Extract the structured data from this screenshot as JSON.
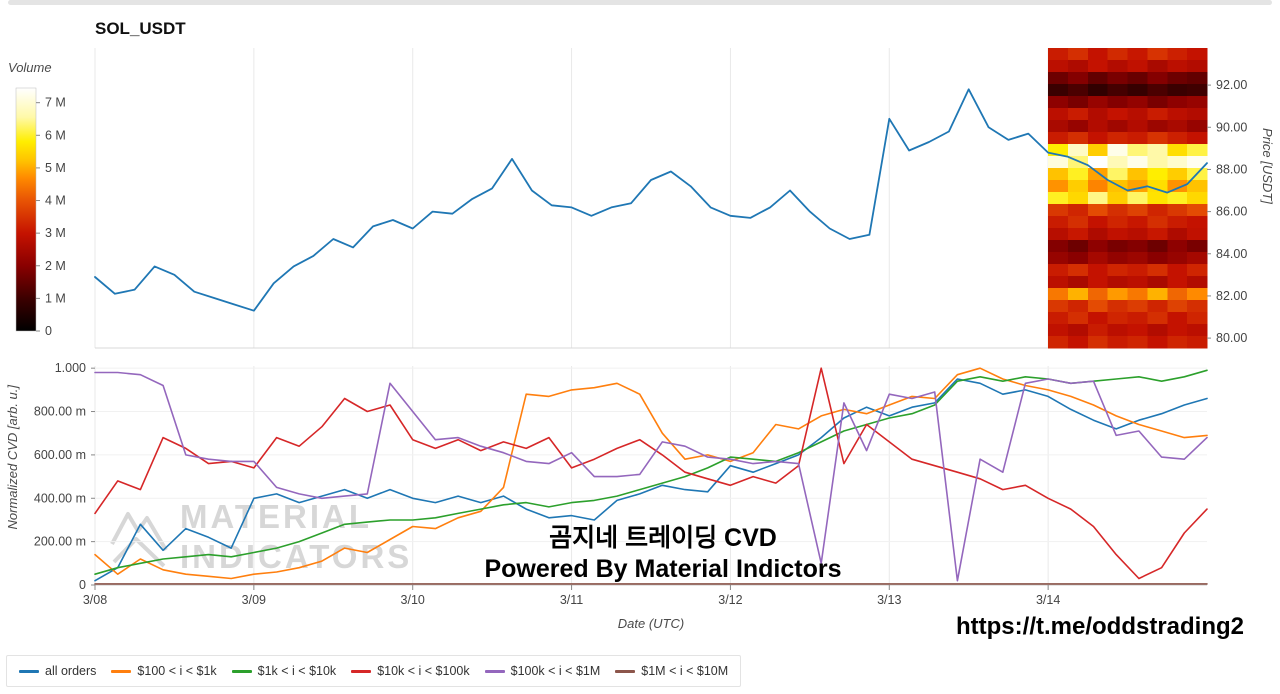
{
  "page": {
    "title": "SOL_USDT"
  },
  "colorbar": {
    "label": "Volume",
    "tick_values": [
      7,
      6,
      5,
      4,
      3,
      2,
      1,
      0
    ],
    "tick_labels": [
      "7 M",
      "6 M",
      "5 M",
      "4 M",
      "3 M",
      "2 M",
      "1 M",
      "0"
    ]
  },
  "axes": {
    "price_axis": {
      "label": "Price [USDT]",
      "tick_values": [
        92,
        90,
        88,
        86,
        84,
        82,
        80
      ],
      "tick_labels": [
        "92.00",
        "90.00",
        "88.00",
        "86.00",
        "84.00",
        "82.00",
        "80.00"
      ]
    },
    "cvd_axis": {
      "label": "Normalized CVD [arb. u.]",
      "tick_values": [
        1,
        0.8,
        0.6,
        0.4,
        0.2,
        0
      ],
      "tick_labels": [
        "1.000",
        "800.00 m",
        "600.00 m",
        "400.00 m",
        "200.00 m",
        "0"
      ]
    },
    "date_axis": {
      "label": "Date (UTC)",
      "tick_values": [
        0,
        1,
        2,
        3,
        4,
        5,
        6
      ],
      "tick_labels": [
        "3/08",
        "3/09",
        "3/10",
        "3/11",
        "3/12",
        "3/13",
        "3/14"
      ]
    }
  },
  "watermark": {
    "line1": "MATERIAL",
    "line2": "INDICATORS"
  },
  "overlay": {
    "caption_line1": "곰지네 트레이딩 CVD",
    "caption_line2": "Powered By Material Indictors",
    "link": "https://t.me/oddstrading2"
  },
  "legend": {
    "items": [
      {
        "label": "all orders",
        "color": "#1f77b4"
      },
      {
        "label": "$100 < i < $1k",
        "color": "#ff7f0e"
      },
      {
        "label": "$1k < i < $10k",
        "color": "#2ca02c"
      },
      {
        "label": "$10k < i < $100k",
        "color": "#d62728"
      },
      {
        "label": "$100k < i < $1M",
        "color": "#9467bd"
      },
      {
        "label": "$1M < i < $10M",
        "color": "#8c564b"
      }
    ]
  },
  "chart_data": [
    {
      "type": "line",
      "title": "SOL_USDT price",
      "xlabel": "Date (UTC)",
      "ylabel": "Price [USDT]",
      "x_range": [
        0,
        7
      ],
      "ylim": [
        79.53,
        93.76
      ],
      "series": [
        {
          "name": "price",
          "color": "#1f77b4",
          "values": [
            82.9,
            82.1,
            82.3,
            83.4,
            83.0,
            82.2,
            81.9,
            81.6,
            81.3,
            82.6,
            83.4,
            83.9,
            84.7,
            84.3,
            85.3,
            85.6,
            85.2,
            86.0,
            85.9,
            86.6,
            87.1,
            88.5,
            87.0,
            86.3,
            86.2,
            85.8,
            86.2,
            86.4,
            87.5,
            87.9,
            87.2,
            86.2,
            85.8,
            85.7,
            86.2,
            87.0,
            86.0,
            85.2,
            84.7,
            84.9,
            90.4,
            88.9,
            89.3,
            89.8,
            91.8,
            90.0,
            89.4,
            89.7,
            88.8,
            88.6,
            88.2,
            87.5,
            87.0,
            87.2,
            86.9,
            87.3,
            88.3
          ]
        }
      ]
    },
    {
      "type": "heatmap",
      "title": "Volume heatmap",
      "x_range": [
        6,
        7
      ],
      "vmin": 0,
      "vmax": 100,
      "colormap_stops": [
        [
          0,
          "#000000"
        ],
        [
          0.13,
          "#3a0000"
        ],
        [
          0.27,
          "#8a0000"
        ],
        [
          0.4,
          "#c41200"
        ],
        [
          0.54,
          "#e95504"
        ],
        [
          0.63,
          "#ff8a00"
        ],
        [
          0.7,
          "#ffc200"
        ],
        [
          0.78,
          "#ffee00"
        ],
        [
          0.88,
          "#fff9a8"
        ],
        [
          1,
          "#ffffff"
        ]
      ],
      "values": [
        [
          42,
          46,
          40,
          45,
          41,
          47,
          43,
          40
        ],
        [
          38,
          35,
          40,
          36,
          39,
          34,
          38,
          36
        ],
        [
          22,
          26,
          20,
          24,
          21,
          26,
          22,
          20
        ],
        [
          13,
          16,
          11,
          15,
          12,
          16,
          13,
          14
        ],
        [
          28,
          24,
          30,
          26,
          29,
          24,
          28,
          30
        ],
        [
          38,
          42,
          36,
          40,
          37,
          42,
          38,
          36
        ],
        [
          34,
          30,
          36,
          32,
          36,
          31,
          34,
          30
        ],
        [
          42,
          46,
          40,
          44,
          42,
          47,
          43,
          40
        ],
        [
          78,
          92,
          72,
          97,
          85,
          88,
          75,
          82
        ],
        [
          95,
          85,
          100,
          90,
          97,
          88,
          93,
          98
        ],
        [
          70,
          80,
          66,
          84,
          70,
          78,
          72,
          82
        ],
        [
          64,
          72,
          62,
          70,
          66,
          75,
          64,
          70
        ],
        [
          80,
          74,
          86,
          72,
          84,
          76,
          80,
          74
        ],
        [
          48,
          44,
          52,
          46,
          50,
          44,
          48,
          52
        ],
        [
          42,
          46,
          40,
          44,
          41,
          46,
          42,
          40
        ],
        [
          37,
          41,
          35,
          39,
          37,
          41,
          35,
          39
        ],
        [
          26,
          22,
          28,
          24,
          26,
          22,
          28,
          24
        ],
        [
          30,
          27,
          33,
          29,
          31,
          27,
          30,
          33
        ],
        [
          42,
          46,
          40,
          44,
          42,
          46,
          40,
          44
        ],
        [
          38,
          34,
          40,
          36,
          38,
          34,
          40,
          36
        ],
        [
          60,
          68,
          57,
          65,
          60,
          68,
          57,
          63
        ],
        [
          48,
          44,
          52,
          46,
          49,
          44,
          50,
          46
        ],
        [
          42,
          46,
          40,
          44,
          42,
          46,
          40,
          44
        ],
        [
          39,
          36,
          42,
          38,
          40,
          36,
          40,
          38
        ],
        [
          44,
          40,
          46,
          42,
          44,
          40,
          44,
          42
        ]
      ]
    },
    {
      "type": "line",
      "title": "Normalized CVD",
      "xlabel": "Date (UTC)",
      "ylabel": "Normalized CVD [arb. u.]",
      "x_range": [
        0,
        7
      ],
      "ylim": [
        0,
        1.01
      ],
      "series": [
        {
          "name": "all orders",
          "color": "#1f77b4",
          "values": [
            0.02,
            0.08,
            0.28,
            0.16,
            0.26,
            0.22,
            0.17,
            0.4,
            0.42,
            0.38,
            0.41,
            0.44,
            0.4,
            0.44,
            0.4,
            0.38,
            0.41,
            0.38,
            0.41,
            0.35,
            0.31,
            0.32,
            0.3,
            0.39,
            0.42,
            0.46,
            0.44,
            0.43,
            0.55,
            0.52,
            0.56,
            0.6,
            0.68,
            0.77,
            0.82,
            0.78,
            0.82,
            0.84,
            0.95,
            0.93,
            0.88,
            0.9,
            0.87,
            0.81,
            0.76,
            0.72,
            0.76,
            0.79,
            0.83,
            0.86
          ]
        },
        {
          "name": "$100 < i < $1k",
          "color": "#ff7f0e",
          "values": [
            0.14,
            0.05,
            0.12,
            0.07,
            0.05,
            0.04,
            0.03,
            0.05,
            0.06,
            0.08,
            0.11,
            0.17,
            0.15,
            0.21,
            0.27,
            0.26,
            0.31,
            0.34,
            0.45,
            0.88,
            0.87,
            0.9,
            0.91,
            0.93,
            0.88,
            0.7,
            0.58,
            0.6,
            0.57,
            0.61,
            0.74,
            0.72,
            0.78,
            0.81,
            0.79,
            0.83,
            0.87,
            0.86,
            0.97,
            1.0,
            0.95,
            0.92,
            0.9,
            0.87,
            0.83,
            0.78,
            0.74,
            0.71,
            0.68,
            0.69
          ]
        },
        {
          "name": "$1k < i < $10k",
          "color": "#2ca02c",
          "values": [
            0.05,
            0.08,
            0.1,
            0.12,
            0.13,
            0.14,
            0.13,
            0.15,
            0.17,
            0.2,
            0.24,
            0.28,
            0.29,
            0.3,
            0.3,
            0.31,
            0.33,
            0.35,
            0.37,
            0.38,
            0.36,
            0.38,
            0.39,
            0.41,
            0.44,
            0.47,
            0.5,
            0.54,
            0.59,
            0.58,
            0.57,
            0.61,
            0.66,
            0.71,
            0.74,
            0.77,
            0.79,
            0.83,
            0.94,
            0.96,
            0.94,
            0.96,
            0.95,
            0.93,
            0.94,
            0.95,
            0.96,
            0.94,
            0.96,
            0.99
          ]
        },
        {
          "name": "$10k < i < $100k",
          "color": "#d62728",
          "values": [
            0.33,
            0.48,
            0.44,
            0.68,
            0.63,
            0.56,
            0.57,
            0.54,
            0.68,
            0.64,
            0.73,
            0.86,
            0.8,
            0.83,
            0.67,
            0.63,
            0.67,
            0.62,
            0.66,
            0.63,
            0.68,
            0.54,
            0.58,
            0.63,
            0.67,
            0.6,
            0.52,
            0.49,
            0.46,
            0.5,
            0.47,
            0.55,
            1.0,
            0.56,
            0.74,
            0.66,
            0.58,
            0.55,
            0.52,
            0.49,
            0.44,
            0.46,
            0.4,
            0.35,
            0.27,
            0.14,
            0.03,
            0.08,
            0.24,
            0.35
          ]
        },
        {
          "name": "$100k < i < $1M",
          "color": "#9467bd",
          "values": [
            0.98,
            0.98,
            0.97,
            0.92,
            0.6,
            0.58,
            0.57,
            0.57,
            0.45,
            0.42,
            0.4,
            0.41,
            0.42,
            0.93,
            0.8,
            0.67,
            0.68,
            0.64,
            0.61,
            0.57,
            0.56,
            0.61,
            0.5,
            0.5,
            0.51,
            0.66,
            0.64,
            0.59,
            0.58,
            0.56,
            0.57,
            0.56,
            0.1,
            0.84,
            0.62,
            0.88,
            0.86,
            0.89,
            0.02,
            0.58,
            0.52,
            0.93,
            0.95,
            0.93,
            0.94,
            0.69,
            0.71,
            0.59,
            0.58,
            0.68
          ]
        },
        {
          "name": "$1M < i < $10M",
          "color": "#8c564b",
          "values": [
            0.005,
            0.005,
            0.005,
            0.005,
            0.005,
            0.005,
            0.005,
            0.005,
            0.005,
            0.005,
            0.005,
            0.005,
            0.005,
            0.005,
            0.005,
            0.005,
            0.005,
            0.005,
            0.005,
            0.005,
            0.005,
            0.005,
            0.005,
            0.005,
            0.005,
            0.005,
            0.005,
            0.005,
            0.005,
            0.005,
            0.005,
            0.005,
            0.005,
            0.005,
            0.005,
            0.005,
            0.005,
            0.005,
            0.005,
            0.005,
            0.005,
            0.005,
            0.005,
            0.005,
            0.005,
            0.005,
            0.005,
            0.005,
            0.005,
            0.005
          ]
        }
      ]
    }
  ]
}
